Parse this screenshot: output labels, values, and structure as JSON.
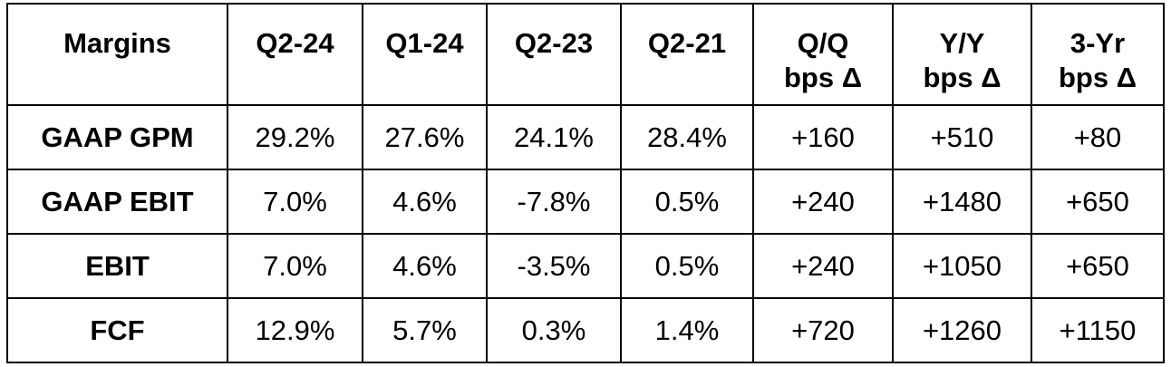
{
  "table": {
    "headers": [
      "Margins",
      "Q2-24",
      "Q1-24",
      "Q2-23",
      "Q2-21",
      "Q/Q\nbps Δ",
      "Y/Y\nbps Δ",
      "3-Yr\nbps Δ"
    ],
    "header_lines": [
      [
        "Margins"
      ],
      [
        "Q2-24"
      ],
      [
        "Q1-24"
      ],
      [
        "Q2-23"
      ],
      [
        "Q2-21"
      ],
      [
        "Q/Q",
        "bps Δ"
      ],
      [
        "Y/Y",
        "bps Δ"
      ],
      [
        "3-Yr",
        "bps Δ"
      ]
    ],
    "rows": [
      {
        "label": "GAAP GPM",
        "cells": [
          "29.2%",
          "27.6%",
          "24.1%",
          "28.4%",
          "+160",
          "+510",
          "+80"
        ]
      },
      {
        "label": "GAAP EBIT",
        "cells": [
          "7.0%",
          "4.6%",
          "-7.8%",
          "0.5%",
          "+240",
          "+1480",
          "+650"
        ]
      },
      {
        "label": "EBIT",
        "cells": [
          "7.0%",
          "4.6%",
          "-3.5%",
          "0.5%",
          "+240",
          "+1050",
          "+650"
        ]
      },
      {
        "label": "FCF",
        "cells": [
          "12.9%",
          "5.7%",
          "0.3%",
          "1.4%",
          "+720",
          "+1260",
          "+1150"
        ]
      }
    ]
  }
}
